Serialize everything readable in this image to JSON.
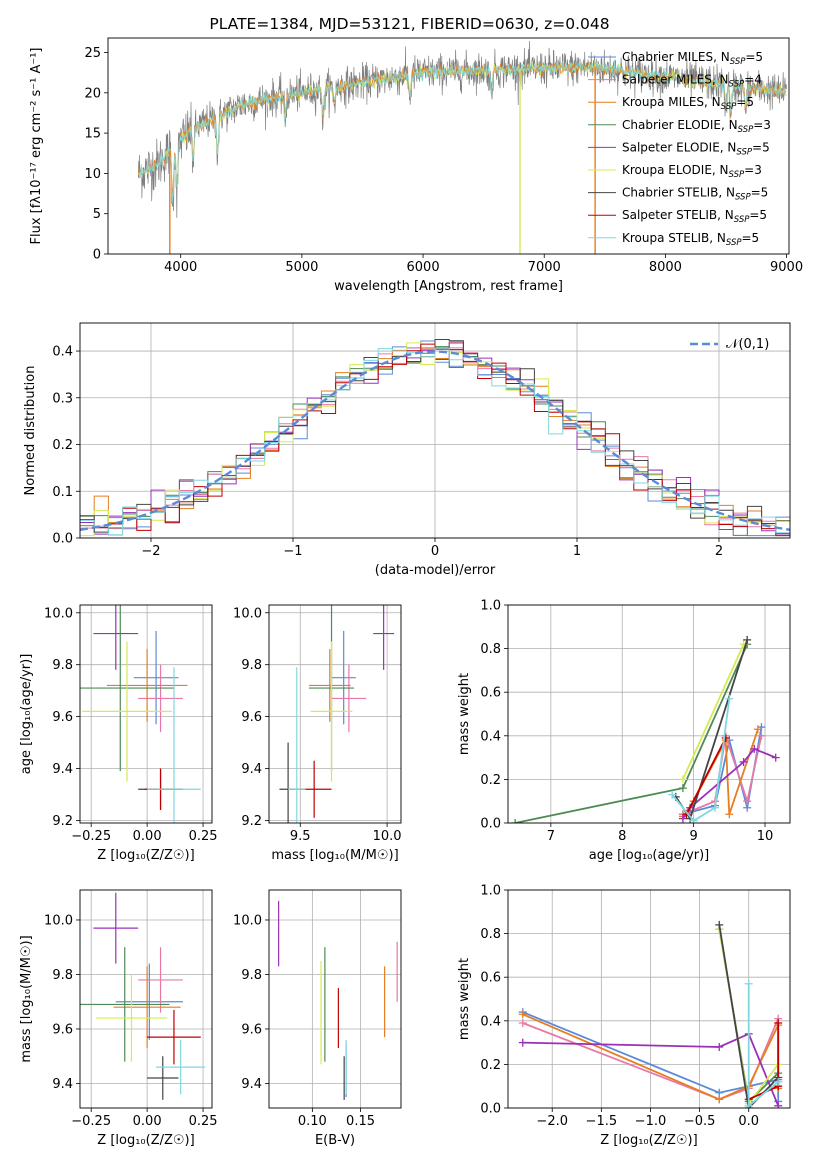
{
  "figure_title": "PLATE=1384, MJD=53121, FIBERID=0630, z=0.048",
  "series": [
    {
      "name": "Chabrier MILES",
      "nssp": "5",
      "color": "#5b8bd8"
    },
    {
      "name": "Salpeter MILES",
      "nssp": "4",
      "color": "#e879a6"
    },
    {
      "name": "Kroupa MILES",
      "nssp": "5",
      "color": "#e67e22"
    },
    {
      "name": "Chabrier ELODIE",
      "nssp": "3",
      "color": "#4f8a55"
    },
    {
      "name": "Salpeter ELODIE",
      "nssp": "5",
      "color": "#9b30b8"
    },
    {
      "name": "Kroupa ELODIE",
      "nssp": "3",
      "color": "#d6ea55"
    },
    {
      "name": "Chabrier STELIB",
      "nssp": "5",
      "color": "#444444"
    },
    {
      "name": "Salpeter STELIB",
      "nssp": "5",
      "color": "#c00000"
    },
    {
      "name": "Kroupa STELIB",
      "nssp": "5",
      "color": "#7fd8e0"
    }
  ],
  "chart_data": [
    {
      "id": "spectrum",
      "type": "line",
      "xlabel": "wavelength [Angstrom, rest frame]",
      "ylabel": "Flux [fλ10⁻¹⁷ erg cm⁻² s⁻¹ A⁻¹]",
      "xlim": [
        3400,
        9020
      ],
      "ylim": [
        0,
        26.8
      ],
      "xticks": [
        4000,
        5000,
        6000,
        7000,
        8000,
        9000
      ],
      "yticks": [
        0,
        5,
        10,
        15,
        20,
        25
      ],
      "grid": false,
      "legend_position": "right",
      "spectrum_range": [
        3650,
        9000
      ],
      "continuum_anchors": [
        [
          3650,
          10
        ],
        [
          3800,
          11
        ],
        [
          3950,
          13.5
        ],
        [
          4100,
          15.5
        ],
        [
          4300,
          17
        ],
        [
          4500,
          18.5
        ],
        [
          4800,
          19.5
        ],
        [
          5200,
          20.5
        ],
        [
          5600,
          21.5
        ],
        [
          6000,
          22.5
        ],
        [
          6500,
          22.8
        ],
        [
          7000,
          23
        ],
        [
          7400,
          23.2
        ],
        [
          8000,
          22
        ],
        [
          8500,
          21
        ],
        [
          9000,
          20
        ]
      ],
      "absorption_lines": [
        [
          3934,
          7
        ],
        [
          3969,
          6
        ],
        [
          4102,
          4
        ],
        [
          4304,
          5
        ],
        [
          4861,
          3
        ],
        [
          5175,
          4
        ],
        [
          5270,
          2
        ],
        [
          5892,
          3
        ],
        [
          6563,
          3
        ],
        [
          8500,
          3
        ],
        [
          8542,
          4
        ],
        [
          8662,
          3
        ]
      ],
      "spikes_to_zero": [
        3910,
        6800,
        7420
      ]
    },
    {
      "id": "residuals",
      "type": "histogram",
      "xlabel": "(data-model)/error",
      "ylabel": "Normed distribution",
      "xlim": [
        -2.5,
        2.5
      ],
      "ylim": [
        0,
        0.46
      ],
      "xticks": [
        -2,
        -1,
        0,
        1,
        2
      ],
      "yticks": [
        0.0,
        0.1,
        0.2,
        0.3,
        0.4
      ],
      "grid": true,
      "bin_width": 0.1,
      "reference_curve": {
        "name": "𝒩(0,1)",
        "mean": 0,
        "sigma": 1,
        "color": "#5b8bd8",
        "style": "dashed"
      },
      "legend_position": "top-right"
    },
    {
      "id": "age_vs_Z",
      "type": "errorbar",
      "xlabel": "Z [log₁₀(Z/Z☉)]",
      "ylabel": "age  [log₁₀(age/yr)]",
      "xlim": [
        -0.3,
        0.29
      ],
      "ylim": [
        9.19,
        10.03
      ],
      "xticks": [
        -0.25,
        0.0,
        0.25
      ],
      "yticks": [
        9.2,
        9.4,
        9.6,
        9.8,
        10.0
      ],
      "grid": true,
      "points": [
        {
          "s": 0,
          "x": 0.04,
          "y": 9.75,
          "xerr": 0.1,
          "yerr": 0.18
        },
        {
          "s": 1,
          "x": 0.06,
          "y": 9.67,
          "xerr": 0.1,
          "yerr": 0.13
        },
        {
          "s": 2,
          "x": 0.0,
          "y": 9.72,
          "xerr": 0.18,
          "yerr": 0.14
        },
        {
          "s": 3,
          "x": -0.12,
          "y": 9.71,
          "xerr": 0.24,
          "yerr": 0.32
        },
        {
          "s": 4,
          "x": -0.14,
          "y": 9.92,
          "xerr": 0.1,
          "yerr": 0.14
        },
        {
          "s": 5,
          "x": -0.09,
          "y": 9.62,
          "xerr": 0.2,
          "yerr": 0.27
        },
        {
          "s": 6,
          "x": 0.06,
          "y": 9.32,
          "xerr": 0.1,
          "yerr": 0.08
        },
        {
          "s": 7,
          "x": 0.06,
          "y": 9.32,
          "xerr": 0.07,
          "yerr": 0.08
        },
        {
          "s": 8,
          "x": 0.12,
          "y": 9.32,
          "xerr": 0.12,
          "yerr": 0.47
        }
      ]
    },
    {
      "id": "age_vs_mass",
      "type": "errorbar",
      "xlabel": "mass [log₁₀(M/M☉)]",
      "ylabel": "",
      "xlim": [
        9.32,
        10.08
      ],
      "ylim": [
        9.19,
        10.03
      ],
      "xticks": [
        9.5,
        10.0
      ],
      "yticks": [
        9.2,
        9.4,
        9.6,
        9.8,
        10.0
      ],
      "grid": true,
      "points": [
        {
          "s": 0,
          "x": 9.75,
          "y": 9.75,
          "xerr": 0.07,
          "yerr": 0.18
        },
        {
          "s": 1,
          "x": 9.78,
          "y": 9.67,
          "xerr": 0.1,
          "yerr": 0.13
        },
        {
          "s": 2,
          "x": 9.67,
          "y": 9.72,
          "xerr": 0.12,
          "yerr": 0.14
        },
        {
          "s": 3,
          "x": 9.68,
          "y": 9.71,
          "xerr": 0.13,
          "yerr": 0.32
        },
        {
          "s": 4,
          "x": 9.98,
          "y": 9.92,
          "xerr": 0.06,
          "yerr": 0.14
        },
        {
          "s": 5,
          "x": 9.68,
          "y": 9.62,
          "xerr": 0.12,
          "yerr": 0.27
        },
        {
          "s": 6,
          "x": 9.43,
          "y": 9.32,
          "xerr": 0.05,
          "yerr": 0.18
        },
        {
          "s": 7,
          "x": 9.58,
          "y": 9.32,
          "xerr": 0.1,
          "yerr": 0.11
        },
        {
          "s": 8,
          "x": 9.48,
          "y": 9.32,
          "xerr": 0.05,
          "yerr": 0.47
        }
      ]
    },
    {
      "id": "weight_vs_age",
      "type": "line",
      "xlabel": "age  [log₁₀(age/yr)]",
      "ylabel": "mass weight",
      "xlim": [
        6.4,
        10.35
      ],
      "ylim": [
        0,
        1.0
      ],
      "xticks": [
        7,
        8,
        9,
        10
      ],
      "yticks": [
        0.0,
        0.2,
        0.4,
        0.6,
        0.8,
        1.0
      ],
      "grid": true,
      "lines": [
        {
          "s": 0,
          "points": [
            [
              8.85,
              0.04
            ],
            [
              9.3,
              0.08
            ],
            [
              9.5,
              0.38
            ],
            [
              9.75,
              0.07
            ],
            [
              9.95,
              0.44
            ]
          ]
        },
        {
          "s": 1,
          "points": [
            [
              8.85,
              0.04
            ],
            [
              9.3,
              0.1
            ],
            [
              9.45,
              0.4
            ],
            [
              9.75,
              0.1
            ],
            [
              9.95,
              0.4
            ]
          ]
        },
        {
          "s": 2,
          "points": [
            [
              8.85,
              0.03
            ],
            [
              9.0,
              0.1
            ],
            [
              9.45,
              0.38
            ],
            [
              9.5,
              0.04
            ],
            [
              9.9,
              0.43
            ]
          ]
        },
        {
          "s": 3,
          "points": [
            [
              6.5,
              0.0
            ],
            [
              8.85,
              0.16
            ],
            [
              9.75,
              0.82
            ]
          ]
        },
        {
          "s": 4,
          "points": [
            [
              8.85,
              0.02
            ],
            [
              8.95,
              0.07
            ],
            [
              9.7,
              0.28
            ],
            [
              9.85,
              0.34
            ],
            [
              10.15,
              0.3
            ]
          ]
        },
        {
          "s": 5,
          "points": [
            [
              8.85,
              0.2
            ],
            [
              9.7,
              0.82
            ]
          ]
        },
        {
          "s": 6,
          "points": [
            [
              8.75,
              0.12
            ],
            [
              8.95,
              0.02
            ],
            [
              9.75,
              0.84
            ]
          ]
        },
        {
          "s": 7,
          "points": [
            [
              8.9,
              0.04
            ],
            [
              9.45,
              0.39
            ]
          ]
        },
        {
          "s": 8,
          "points": [
            [
              8.7,
              0.13
            ],
            [
              9.0,
              0.01
            ],
            [
              9.3,
              0.07
            ],
            [
              9.5,
              0.57
            ]
          ]
        }
      ]
    },
    {
      "id": "mass_vs_Z",
      "type": "errorbar",
      "xlabel": "Z [log₁₀(Z/Z☉)]",
      "ylabel": "mass [log₁₀(M/M☉)]",
      "xlim": [
        -0.3,
        0.29
      ],
      "ylim": [
        9.31,
        10.11
      ],
      "xticks": [
        -0.25,
        0.0,
        0.25
      ],
      "yticks": [
        9.4,
        9.6,
        9.8,
        10.0
      ],
      "grid": true,
      "points": [
        {
          "s": 0,
          "x": 0.01,
          "y": 9.7,
          "xerr": 0.15,
          "yerr": 0.14
        },
        {
          "s": 1,
          "x": 0.06,
          "y": 9.78,
          "xerr": 0.1,
          "yerr": 0.12
        },
        {
          "s": 2,
          "x": 0.0,
          "y": 9.68,
          "xerr": 0.15,
          "yerr": 0.15
        },
        {
          "s": 3,
          "x": -0.1,
          "y": 9.69,
          "xerr": 0.2,
          "yerr": 0.21
        },
        {
          "s": 4,
          "x": -0.14,
          "y": 9.97,
          "xerr": 0.1,
          "yerr": 0.13
        },
        {
          "s": 5,
          "x": -0.07,
          "y": 9.64,
          "xerr": 0.16,
          "yerr": 0.16
        },
        {
          "s": 6,
          "x": 0.07,
          "y": 9.42,
          "xerr": 0.07,
          "yerr": 0.08
        },
        {
          "s": 7,
          "x": 0.12,
          "y": 9.57,
          "xerr": 0.12,
          "yerr": 0.1
        },
        {
          "s": 8,
          "x": 0.15,
          "y": 9.46,
          "xerr": 0.11,
          "yerr": 0.1
        }
      ]
    },
    {
      "id": "mass_vs_EBV",
      "type": "errorbar",
      "xlabel": "E(B-V)",
      "ylabel": "",
      "xlim": [
        0.055,
        0.192
      ],
      "ylim": [
        9.31,
        10.11
      ],
      "xticks": [
        0.1,
        0.15
      ],
      "yticks": [
        9.4,
        9.6,
        9.8,
        10.0
      ],
      "grid": true,
      "points": [
        {
          "s": 0,
          "x": 0.135,
          "y": 9.45,
          "xerr": 0,
          "yerr": 0.1
        },
        {
          "s": 1,
          "x": 0.188,
          "y": 9.81,
          "xerr": 0,
          "yerr": 0.11
        },
        {
          "s": 2,
          "x": 0.175,
          "y": 9.7,
          "xerr": 0,
          "yerr": 0.13
        },
        {
          "s": 3,
          "x": 0.113,
          "y": 9.69,
          "xerr": 0,
          "yerr": 0.21
        },
        {
          "s": 4,
          "x": 0.065,
          "y": 9.95,
          "xerr": 0,
          "yerr": 0.12
        },
        {
          "s": 5,
          "x": 0.109,
          "y": 9.66,
          "xerr": 0,
          "yerr": 0.19
        },
        {
          "s": 6,
          "x": 0.133,
          "y": 9.42,
          "xerr": 0,
          "yerr": 0.08
        },
        {
          "s": 7,
          "x": 0.127,
          "y": 9.64,
          "xerr": 0,
          "yerr": 0.11
        },
        {
          "s": 8,
          "x": 0.135,
          "y": 9.46,
          "xerr": 0,
          "yerr": 0.1
        }
      ]
    },
    {
      "id": "weight_vs_Z",
      "type": "line",
      "xlabel": "Z [log₁₀(Z/Z☉)]",
      "ylabel": "mass weight",
      "xlim": [
        -2.45,
        0.42
      ],
      "ylim": [
        0,
        1.0
      ],
      "xticks": [
        -2.0,
        -1.5,
        -1.0,
        -0.5,
        0.0
      ],
      "yticks": [
        0.0,
        0.2,
        0.4,
        0.6,
        0.8,
        1.0
      ],
      "grid": true,
      "lines": [
        {
          "s": 0,
          "points": [
            [
              -2.3,
              0.44
            ],
            [
              -0.3,
              0.07
            ],
            [
              0.0,
              0.1
            ],
            [
              0.3,
              0.13
            ],
            [
              0.3,
              0.03
            ]
          ]
        },
        {
          "s": 1,
          "points": [
            [
              -2.3,
              0.39
            ],
            [
              -0.3,
              0.04
            ],
            [
              0.0,
              0.09
            ],
            [
              0.3,
              0.41
            ],
            [
              0.3,
              0.12
            ]
          ]
        },
        {
          "s": 2,
          "points": [
            [
              -2.3,
              0.43
            ],
            [
              -0.3,
              0.04
            ],
            [
              0.0,
              0.1
            ],
            [
              0.3,
              0.38
            ],
            [
              0.3,
              0.09
            ]
          ]
        },
        {
          "s": 3,
          "points": [
            [
              -0.3,
              0.82
            ],
            [
              0.0,
              0.03
            ],
            [
              0.3,
              0.16
            ]
          ]
        },
        {
          "s": 4,
          "points": [
            [
              -2.3,
              0.3
            ],
            [
              -0.3,
              0.28
            ],
            [
              0.0,
              0.34
            ],
            [
              0.3,
              0.01
            ]
          ]
        },
        {
          "s": 5,
          "points": [
            [
              -0.3,
              0.82
            ],
            [
              0.0,
              0.02
            ],
            [
              0.3,
              0.2
            ]
          ]
        },
        {
          "s": 6,
          "points": [
            [
              -0.3,
              0.84
            ],
            [
              0.0,
              0.0
            ],
            [
              0.3,
              0.14
            ]
          ]
        },
        {
          "s": 7,
          "points": [
            [
              0.0,
              0.04
            ],
            [
              0.3,
              0.1
            ],
            [
              0.3,
              0.39
            ]
          ]
        },
        {
          "s": 8,
          "points": [
            [
              0.0,
              0.57
            ],
            [
              0.0,
              0.01
            ],
            [
              0.3,
              0.12
            ]
          ]
        }
      ]
    }
  ]
}
